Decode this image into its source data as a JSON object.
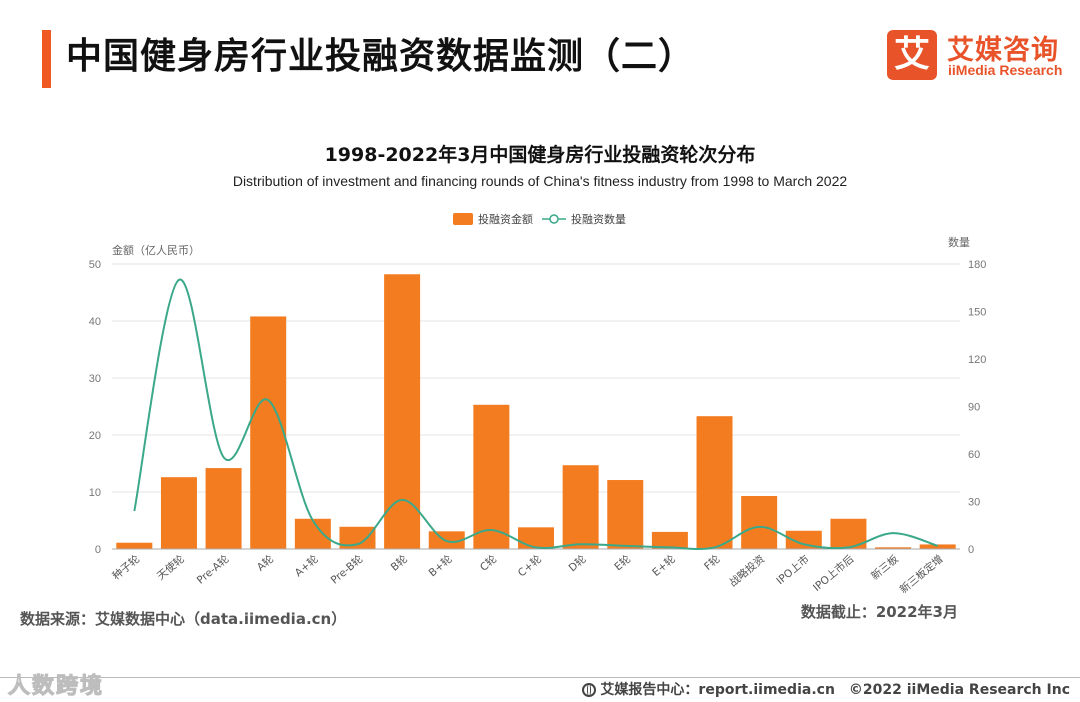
{
  "header": {
    "title": "中国健身房行业投融资数据监测（二）",
    "logo": {
      "mark": "艾",
      "name_cn": "艾媒咨询",
      "name_en": "iiMedia Research",
      "color": "#e8532a"
    },
    "accent_color": "#f05a22"
  },
  "chart_data": {
    "type": "bar",
    "title": "1998-2022年3月中国健身房行业投融资轮次分布",
    "subtitle": "Distribution of investment and financing rounds of China's fitness industry from 1998 to March 2022",
    "categories": [
      "种子轮",
      "天使轮",
      "Pre-A轮",
      "A轮",
      "A+轮",
      "Pre-B轮",
      "B轮",
      "B+轮",
      "C轮",
      "C+轮",
      "D轮",
      "E轮",
      "E+轮",
      "F轮",
      "战略投资",
      "IPO上市",
      "IPO上市后",
      "新三板",
      "新三板定增"
    ],
    "series": [
      {
        "name": "投融资金额",
        "type": "bar",
        "axis": "left",
        "color": "#f47c20",
        "values": [
          1.1,
          12.6,
          14.2,
          40.8,
          5.3,
          3.9,
          48.2,
          3.1,
          25.3,
          3.8,
          14.7,
          12.1,
          3.0,
          23.3,
          9.3,
          3.2,
          5.3,
          0.3,
          0.8
        ]
      },
      {
        "name": "投融资数量",
        "type": "line",
        "axis": "right",
        "color": "#3aa889",
        "values": [
          24,
          170,
          58,
          94,
          18,
          3,
          31,
          5,
          12,
          1,
          3,
          2,
          1,
          1,
          14,
          3,
          1,
          10,
          2
        ]
      }
    ],
    "ylabel": "金额（亿人民币）",
    "ylim": [
      0,
      50
    ],
    "yticks": [
      0,
      10,
      20,
      30,
      40,
      50
    ],
    "y2label": "数量",
    "y2lim": [
      0,
      180
    ],
    "y2ticks": [
      0,
      30,
      60,
      90,
      120,
      150,
      180
    ],
    "legend_position": "top-center",
    "grid": true
  },
  "footer": {
    "source": "数据来源：艾媒数据中心（data.iimedia.cn）",
    "cutoff": "数据截止：2022年3月",
    "report_center": "艾媒报告中心：report.iimedia.cn",
    "copyright": "©2022  iiMedia Research  Inc",
    "watermark": "人数跨境"
  }
}
